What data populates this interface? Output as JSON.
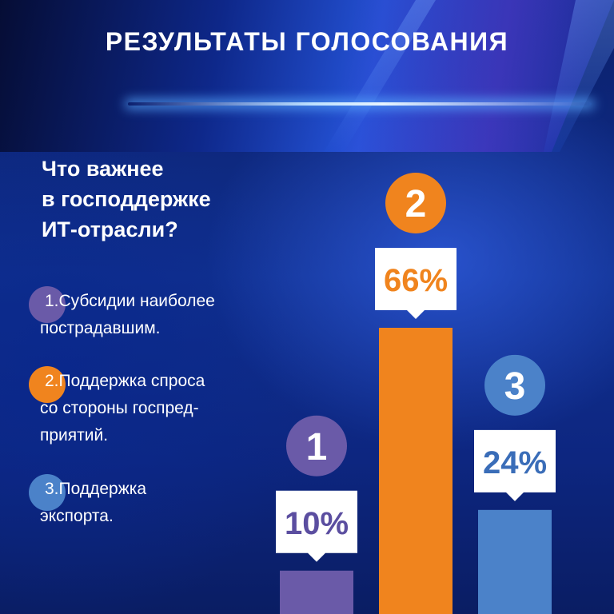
{
  "header": {
    "title": "РЕЗУЛЬТАТЫ ГОЛОСОВАНИЯ"
  },
  "question": {
    "lines": [
      "Что важнее",
      "в господдержке",
      "ИТ-отрасли?"
    ]
  },
  "options": [
    {
      "number": "1.",
      "lines": [
        "Субсидии наиболее",
        "пострадавшим."
      ]
    },
    {
      "number": "2.",
      "lines": [
        "Поддержка спроса",
        "со стороны госпред-",
        "приятий."
      ]
    },
    {
      "number": "3.",
      "lines": [
        "Поддержка",
        "экспорта."
      ]
    }
  ],
  "colors": {
    "option1": "#6a5aa8",
    "option2": "#f0841e",
    "option3": "#4b82c9",
    "label_text": "#5b4ea0",
    "label_text_3": "#3a6db8"
  },
  "chart_data": {
    "type": "bar",
    "categories": [
      "1",
      "2",
      "3"
    ],
    "values": [
      10,
      66,
      24
    ],
    "value_labels": [
      "10%",
      "66%",
      "24%"
    ],
    "colors": [
      "#6a5aa8",
      "#f0841e",
      "#4b82c9"
    ],
    "ylim": [
      0,
      66
    ],
    "grid": false,
    "legend": "none"
  }
}
